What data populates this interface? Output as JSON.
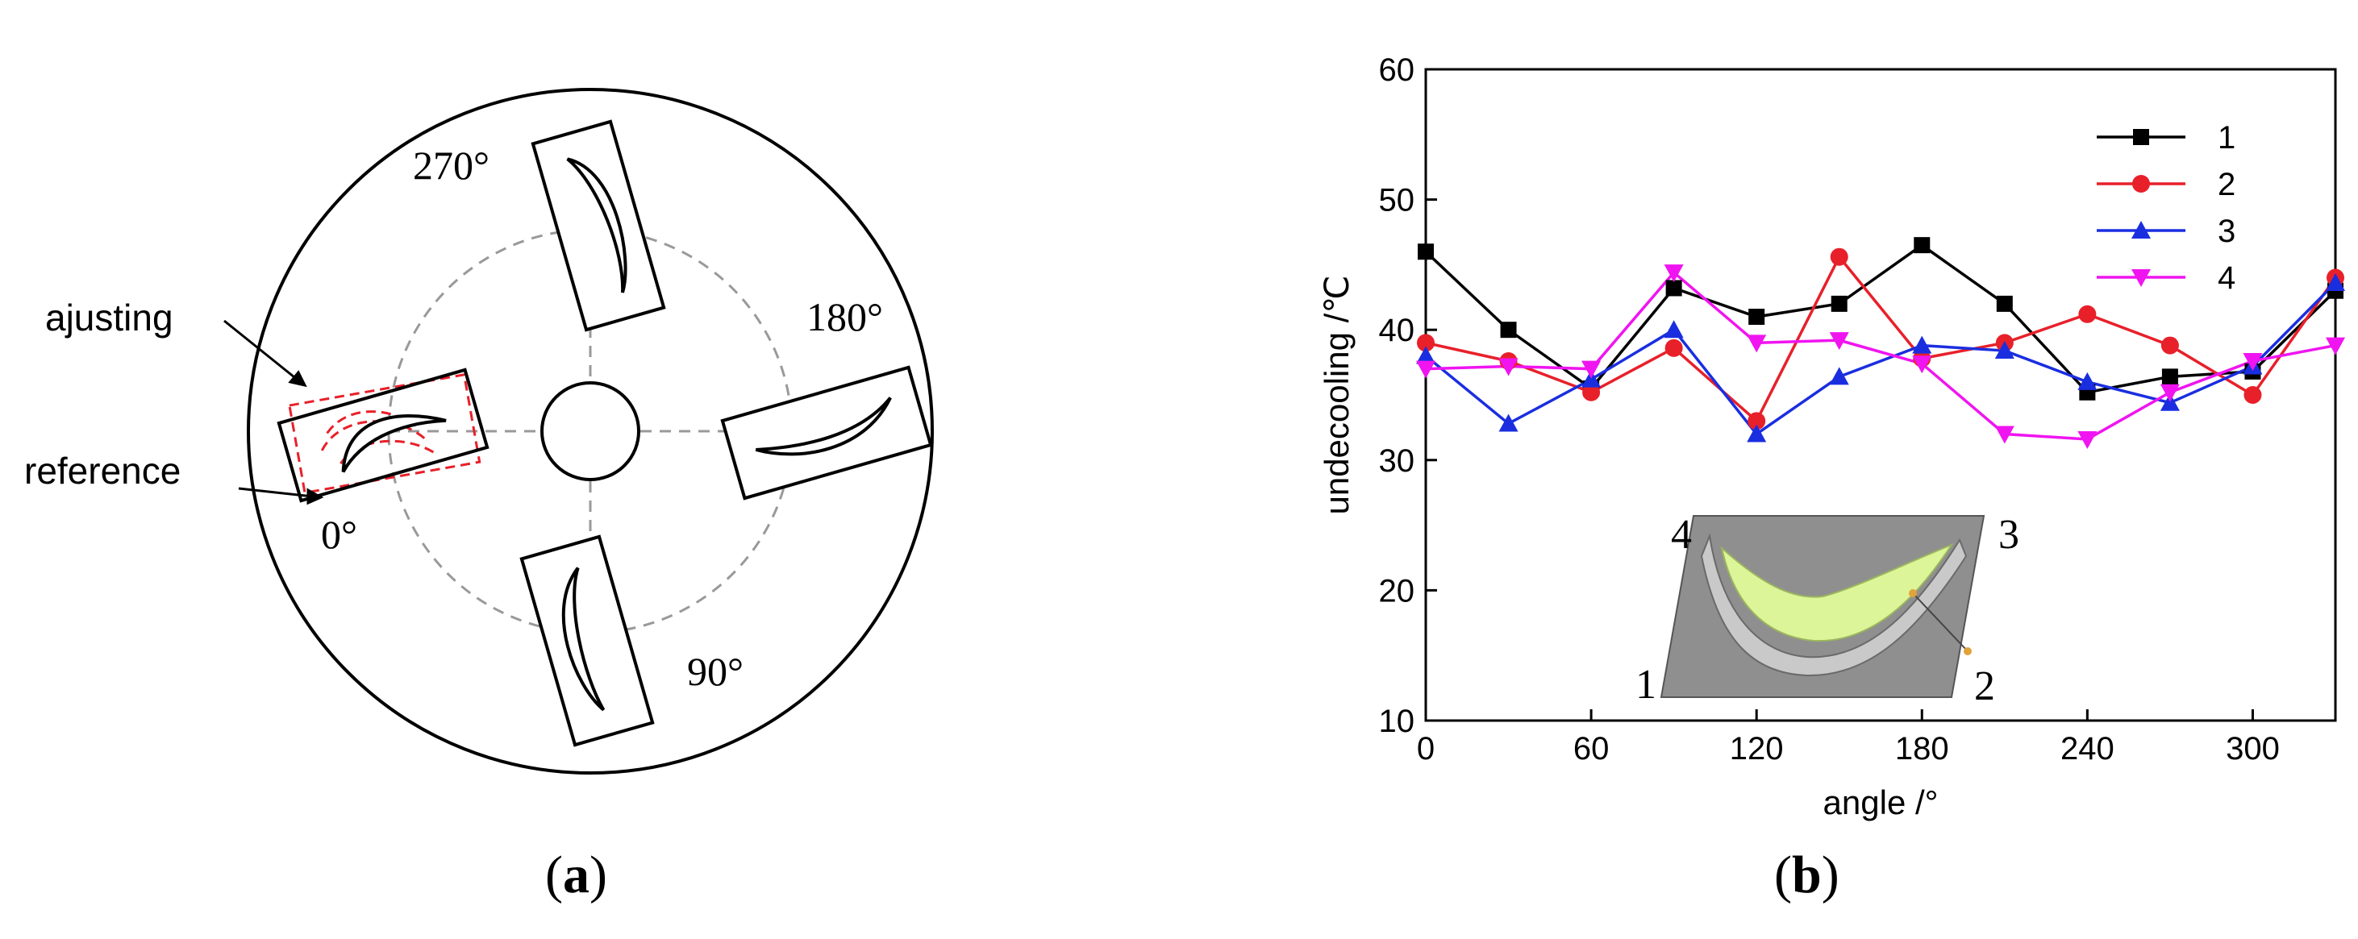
{
  "panel_a": {
    "caption_open": "(",
    "caption_letter": "a",
    "caption_close": ")",
    "labels": {
      "ajusting": "ajusting",
      "reference": "reference",
      "angle_0": "0°",
      "angle_90": "90°",
      "angle_180": "180°",
      "angle_270": "270°"
    },
    "colors": {
      "outline": "#000000",
      "dashed": "#999999",
      "adjust": "#e8202a"
    }
  },
  "panel_b": {
    "caption_open": "(",
    "caption_letter": "b",
    "caption_close": ")",
    "inset_labels": {
      "p1": "1",
      "p2": "2",
      "p3": "3",
      "p4": "4"
    }
  },
  "chart_data": {
    "type": "line",
    "title": "",
    "xlabel": "angle /°",
    "ylabel": "undecooling /℃",
    "xlim": [
      0,
      330
    ],
    "ylim": [
      10,
      60
    ],
    "xticks": [
      0,
      60,
      120,
      180,
      240,
      300
    ],
    "yticks": [
      10,
      20,
      30,
      40,
      50,
      60
    ],
    "grid": false,
    "legend_position": "top-right",
    "x": [
      0,
      30,
      60,
      90,
      120,
      150,
      180,
      210,
      240,
      270,
      300,
      330
    ],
    "series": [
      {
        "name": "1",
        "color": "#000000",
        "marker": "square",
        "values": [
          46,
          40,
          35.5,
          43.2,
          41,
          42,
          46.5,
          42,
          35.2,
          36.4,
          36.8,
          43
        ]
      },
      {
        "name": "2",
        "color": "#e8202a",
        "marker": "circle",
        "values": [
          39,
          37.6,
          35.2,
          38.6,
          33,
          45.6,
          37.8,
          39,
          41.2,
          38.8,
          35,
          44
        ]
      },
      {
        "name": "3",
        "color": "#1a2ee0",
        "marker": "triangle-up",
        "values": [
          38,
          32.8,
          36.2,
          40,
          32,
          36.4,
          38.8,
          38.4,
          36,
          34.4,
          37.2,
          43.6
        ]
      },
      {
        "name": "4",
        "color": "#f014f0",
        "marker": "triangle-down",
        "values": [
          37,
          37.2,
          37,
          44.4,
          39,
          39.2,
          37.4,
          32,
          31.6,
          35.2,
          37.6,
          38.8
        ]
      }
    ]
  }
}
